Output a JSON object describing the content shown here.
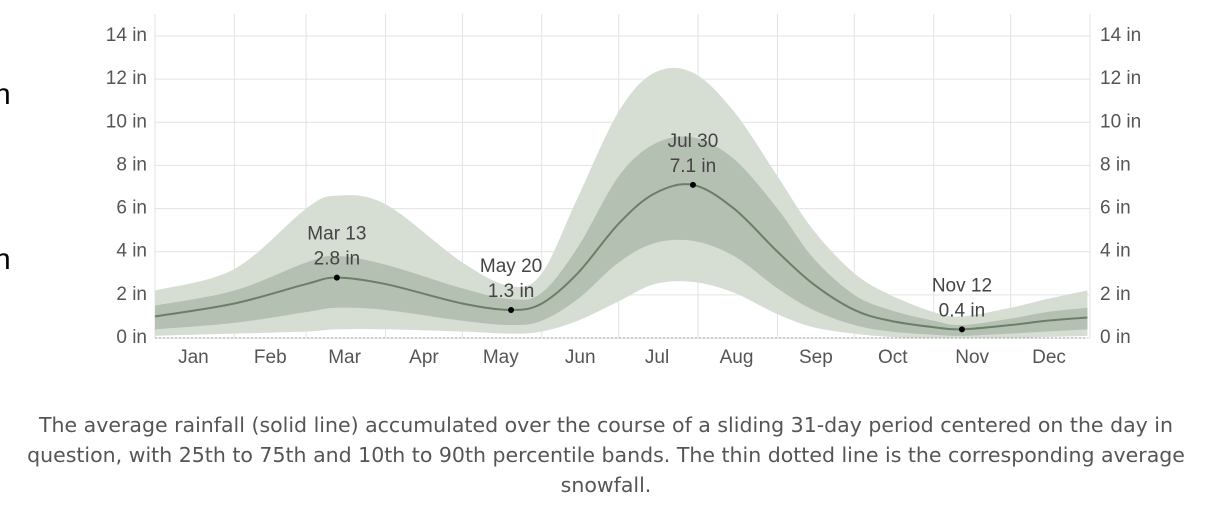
{
  "chart_data": {
    "type": "band-line",
    "x": [
      1,
      32,
      60,
      72,
      91,
      121,
      140,
      152,
      166,
      182,
      196,
      211,
      227,
      244,
      258,
      274,
      288,
      305,
      316,
      335,
      349,
      365
    ],
    "xlim": [
      1,
      366
    ],
    "xticks": [
      {
        "value": 16,
        "label": "Jan"
      },
      {
        "value": 46,
        "label": "Feb"
      },
      {
        "value": 75,
        "label": "Mar"
      },
      {
        "value": 106,
        "label": "Apr"
      },
      {
        "value": 136,
        "label": "May"
      },
      {
        "value": 167,
        "label": "Jun"
      },
      {
        "value": 197,
        "label": "Jul"
      },
      {
        "value": 228,
        "label": "Aug"
      },
      {
        "value": 259,
        "label": "Sep"
      },
      {
        "value": 289,
        "label": "Oct"
      },
      {
        "value": 320,
        "label": "Nov"
      },
      {
        "value": 350,
        "label": "Dec"
      }
    ],
    "xgrid": [
      1,
      32,
      60,
      91,
      121,
      152,
      182,
      213,
      244,
      274,
      305,
      335,
      366
    ],
    "ylim": [
      0,
      14
    ],
    "yticks": [
      {
        "value": 0,
        "label": "0 in"
      },
      {
        "value": 2,
        "label": "2 in"
      },
      {
        "value": 4,
        "label": "4 in"
      },
      {
        "value": 6,
        "label": "6 in"
      },
      {
        "value": 8,
        "label": "8 in"
      },
      {
        "value": 10,
        "label": "10 in"
      },
      {
        "value": 12,
        "label": "12 in"
      },
      {
        "value": 14,
        "label": "14 in"
      }
    ],
    "grid": true,
    "bands": [
      {
        "color": "#d6ded4",
        "lower": [
          0.1,
          0.2,
          0.3,
          0.4,
          0.4,
          0.3,
          0.2,
          0.3,
          0.8,
          1.7,
          2.5,
          2.6,
          2.1,
          1.1,
          0.5,
          0.2,
          0.05,
          0,
          0,
          0,
          0.05,
          0.1
        ],
        "upper": [
          2.2,
          3.2,
          6.0,
          6.6,
          6.2,
          3.5,
          2.4,
          3.0,
          6.5,
          10.5,
          12.3,
          12.3,
          10.5,
          7.5,
          5.0,
          3.0,
          2.0,
          1.2,
          1.0,
          1.4,
          1.8,
          2.2
        ]
      },
      {
        "color": "#b4c0b1",
        "lower": [
          0.4,
          0.7,
          1.2,
          1.4,
          1.3,
          0.8,
          0.6,
          0.8,
          1.8,
          3.5,
          4.4,
          4.5,
          3.8,
          2.3,
          1.3,
          0.6,
          0.3,
          0.15,
          0.1,
          0.2,
          0.3,
          0.4
        ],
        "upper": [
          1.5,
          2.2,
          3.5,
          3.8,
          3.4,
          2.3,
          1.8,
          2.1,
          4.2,
          7.5,
          9.0,
          9.3,
          8.3,
          6.0,
          3.7,
          2.0,
          1.3,
          0.8,
          0.6,
          0.9,
          1.2,
          1.4
        ]
      }
    ],
    "series": [
      {
        "color": "#6b7f68",
        "style": "solid",
        "values": [
          1.0,
          1.6,
          2.5,
          2.8,
          2.5,
          1.6,
          1.3,
          1.6,
          3.0,
          5.3,
          6.7,
          7.1,
          6.0,
          4.0,
          2.5,
          1.3,
          0.8,
          0.5,
          0.4,
          0.6,
          0.8,
          0.95
        ]
      },
      {
        "color": "#999999",
        "style": "dotted",
        "values": [
          0,
          0,
          0,
          0,
          0,
          0,
          0,
          0,
          0,
          0,
          0,
          0,
          0,
          0,
          0,
          0,
          0,
          0,
          0,
          0,
          0,
          0
        ]
      }
    ],
    "annotations": [
      {
        "x": 72,
        "date": "Mar 13",
        "value": 2.8,
        "value_label": "2.8 in"
      },
      {
        "x": 140,
        "date": "May 20",
        "value": 1.3,
        "value_label": "1.3 in"
      },
      {
        "x": 211,
        "date": "Jul 30",
        "value": 7.1,
        "value_label": "7.1 in"
      },
      {
        "x": 316,
        "date": "Nov 12",
        "value": 0.4,
        "value_label": "0.4 in"
      }
    ],
    "caption": "The average rainfall (solid line) accumulated over the course of a sliding 31-day period centered on the day in question, with 25th to 75th and 10th to 90th percentile bands. The thin dotted line is the corresponding average snowfall."
  },
  "left_fragments": [
    "n",
    "n"
  ]
}
